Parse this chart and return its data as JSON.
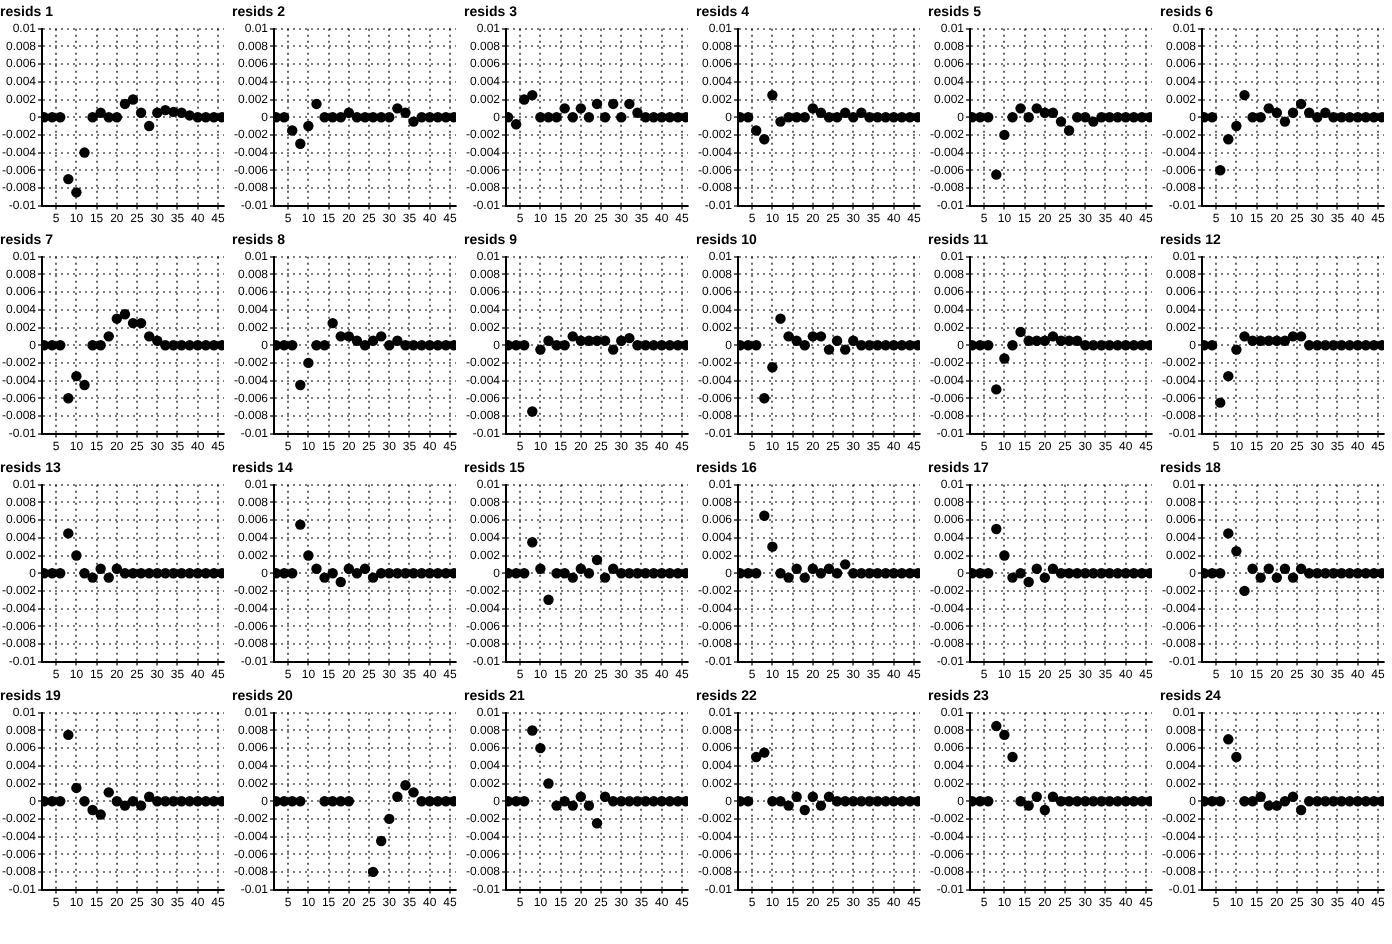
{
  "chart_data": [
    {
      "type": "scatter",
      "title": "resids 1",
      "x": [
        2,
        4,
        6,
        8,
        10,
        12,
        14,
        16,
        18,
        20,
        22,
        24,
        26,
        28,
        30,
        32,
        34,
        36,
        38,
        40,
        42,
        44,
        46
      ],
      "series": [
        {
          "color": "#000000",
          "values": [
            0,
            0,
            0,
            -0.007,
            -0.0085,
            -0.004,
            0,
            0.0005,
            0,
            0,
            0.0015,
            0.002,
            0.0005,
            -0.001,
            0.0005,
            0.0008,
            0.0006,
            0.0005,
            0.0002,
            0,
            0,
            0,
            0
          ]
        }
      ],
      "xlim": [
        1.5,
        46.5
      ],
      "ylim": [
        -0.01,
        0.01
      ],
      "xticks": [
        5,
        10,
        15,
        20,
        25,
        30,
        35,
        40,
        45
      ],
      "yticks": [
        -0.01,
        -0.008,
        -0.006,
        -0.004,
        -0.002,
        0,
        0.002,
        0.004,
        0.006,
        0.008,
        0.01
      ],
      "grid": true,
      "marker": "circle"
    },
    {
      "type": "scatter",
      "title": "resids 2",
      "x": [
        2,
        4,
        6,
        8,
        10,
        12,
        14,
        16,
        18,
        20,
        22,
        24,
        26,
        28,
        30,
        32,
        34,
        36,
        38,
        40,
        42,
        44,
        46
      ],
      "series": [
        {
          "color": "#000000",
          "values": [
            0,
            0,
            -0.0015,
            -0.003,
            -0.001,
            0.0015,
            0,
            0,
            0,
            0.0005,
            0,
            0,
            0,
            0,
            0,
            0.001,
            0.0005,
            -0.0005,
            0,
            0,
            0,
            0,
            0
          ]
        }
      ],
      "xlim": [
        1.5,
        46.5
      ],
      "ylim": [
        -0.01,
        0.01
      ],
      "xticks": [
        5,
        10,
        15,
        20,
        25,
        30,
        35,
        40,
        45
      ],
      "yticks": [
        -0.01,
        -0.008,
        -0.006,
        -0.004,
        -0.002,
        0,
        0.002,
        0.004,
        0.006,
        0.008,
        0.01
      ],
      "grid": true,
      "marker": "circle"
    },
    {
      "type": "scatter",
      "title": "resids 3",
      "x": [
        2,
        4,
        6,
        8,
        10,
        12,
        14,
        16,
        18,
        20,
        22,
        24,
        26,
        28,
        30,
        32,
        34,
        36,
        38,
        40,
        42,
        44,
        46
      ],
      "series": [
        {
          "color": "#000000",
          "values": [
            0,
            -0.0008,
            0.002,
            0.0025,
            0,
            0,
            0,
            0.001,
            0,
            0.001,
            0,
            0.0015,
            0,
            0.0015,
            0,
            0.0015,
            0.0005,
            0,
            0,
            0,
            0,
            0,
            0
          ]
        }
      ],
      "xlim": [
        1.5,
        46.5
      ],
      "ylim": [
        -0.01,
        0.01
      ],
      "xticks": [
        5,
        10,
        15,
        20,
        25,
        30,
        35,
        40,
        45
      ],
      "yticks": [
        -0.01,
        -0.008,
        -0.006,
        -0.004,
        -0.002,
        0,
        0.002,
        0.004,
        0.006,
        0.008,
        0.01
      ],
      "grid": true,
      "marker": "circle"
    },
    {
      "type": "scatter",
      "title": "resids 4",
      "x": [
        2,
        4,
        6,
        8,
        10,
        12,
        14,
        16,
        18,
        20,
        22,
        24,
        26,
        28,
        30,
        32,
        34,
        36,
        38,
        40,
        42,
        44,
        46
      ],
      "series": [
        {
          "color": "#000000",
          "values": [
            0,
            0,
            -0.0015,
            -0.0025,
            0.0025,
            -0.0005,
            0,
            0,
            0,
            0.001,
            0.0005,
            0,
            0,
            0.0005,
            0,
            0.0005,
            0,
            0,
            0,
            0,
            0,
            0,
            0
          ]
        }
      ],
      "xlim": [
        1.5,
        46.5
      ],
      "ylim": [
        -0.01,
        0.01
      ],
      "xticks": [
        5,
        10,
        15,
        20,
        25,
        30,
        35,
        40,
        45
      ],
      "yticks": [
        -0.01,
        -0.008,
        -0.006,
        -0.004,
        -0.002,
        0,
        0.002,
        0.004,
        0.006,
        0.008,
        0.01
      ],
      "grid": true,
      "marker": "circle"
    },
    {
      "type": "scatter",
      "title": "resids 5",
      "x": [
        2,
        4,
        6,
        8,
        10,
        12,
        14,
        16,
        18,
        20,
        22,
        24,
        26,
        28,
        30,
        32,
        34,
        36,
        38,
        40,
        42,
        44,
        46
      ],
      "series": [
        {
          "color": "#000000",
          "values": [
            0,
            0,
            0,
            -0.0065,
            -0.002,
            0,
            0.001,
            0,
            0.001,
            0.0005,
            0.0005,
            -0.0005,
            -0.0015,
            0,
            0,
            -0.0005,
            0,
            0,
            0,
            0,
            0,
            0,
            0
          ]
        }
      ],
      "xlim": [
        1.5,
        46.5
      ],
      "ylim": [
        -0.01,
        0.01
      ],
      "xticks": [
        5,
        10,
        15,
        20,
        25,
        30,
        35,
        40,
        45
      ],
      "yticks": [
        -0.01,
        -0.008,
        -0.006,
        -0.004,
        -0.002,
        0,
        0.002,
        0.004,
        0.006,
        0.008,
        0.01
      ],
      "grid": true,
      "marker": "circle"
    },
    {
      "type": "scatter",
      "title": "resids 6",
      "x": [
        2,
        4,
        6,
        8,
        10,
        12,
        14,
        16,
        18,
        20,
        22,
        24,
        26,
        28,
        30,
        32,
        34,
        36,
        38,
        40,
        42,
        44,
        46
      ],
      "series": [
        {
          "color": "#000000",
          "values": [
            0,
            0,
            -0.006,
            -0.0025,
            -0.001,
            0.0025,
            0,
            0,
            0.001,
            0.0005,
            -0.0005,
            0.0005,
            0.0015,
            0.0005,
            0,
            0.0005,
            0,
            0,
            0,
            0,
            0,
            0,
            0
          ]
        }
      ],
      "xlim": [
        1.5,
        46.5
      ],
      "ylim": [
        -0.01,
        0.01
      ],
      "xticks": [
        5,
        10,
        15,
        20,
        25,
        30,
        35,
        40,
        45
      ],
      "yticks": [
        -0.01,
        -0.008,
        -0.006,
        -0.004,
        -0.002,
        0,
        0.002,
        0.004,
        0.006,
        0.008,
        0.01
      ],
      "grid": true,
      "marker": "circle"
    },
    {
      "type": "scatter",
      "title": "resids 7",
      "x": [
        2,
        4,
        6,
        8,
        10,
        12,
        14,
        16,
        18,
        20,
        22,
        24,
        26,
        28,
        30,
        32,
        34,
        36,
        38,
        40,
        42,
        44,
        46
      ],
      "series": [
        {
          "color": "#000000",
          "values": [
            0,
            0,
            0,
            -0.006,
            -0.0035,
            -0.0045,
            0,
            0,
            0.001,
            0.003,
            0.0035,
            0.0025,
            0.0025,
            0.001,
            0.0005,
            0,
            0,
            0,
            0,
            0,
            0,
            0,
            0
          ]
        }
      ],
      "xlim": [
        1.5,
        46.5
      ],
      "ylim": [
        -0.01,
        0.01
      ],
      "xticks": [
        5,
        10,
        15,
        20,
        25,
        30,
        35,
        40,
        45
      ],
      "yticks": [
        -0.01,
        -0.008,
        -0.006,
        -0.004,
        -0.002,
        0,
        0.002,
        0.004,
        0.006,
        0.008,
        0.01
      ],
      "grid": true,
      "marker": "circle"
    },
    {
      "type": "scatter",
      "title": "resids 8",
      "x": [
        2,
        4,
        6,
        8,
        10,
        12,
        14,
        16,
        18,
        20,
        22,
        24,
        26,
        28,
        30,
        32,
        34,
        36,
        38,
        40,
        42,
        44,
        46
      ],
      "series": [
        {
          "color": "#000000",
          "values": [
            0,
            0,
            0,
            -0.0045,
            -0.002,
            0,
            0,
            0.0025,
            0.001,
            0.001,
            0.0005,
            0,
            0.0005,
            0.001,
            0,
            0.0005,
            0,
            0,
            0,
            0,
            0,
            0,
            0
          ]
        }
      ],
      "xlim": [
        1.5,
        46.5
      ],
      "ylim": [
        -0.01,
        0.01
      ],
      "xticks": [
        5,
        10,
        15,
        20,
        25,
        30,
        35,
        40,
        45
      ],
      "yticks": [
        -0.01,
        -0.008,
        -0.006,
        -0.004,
        -0.002,
        0,
        0.002,
        0.004,
        0.006,
        0.008,
        0.01
      ],
      "grid": true,
      "marker": "circle"
    },
    {
      "type": "scatter",
      "title": "resids 9",
      "x": [
        2,
        4,
        6,
        8,
        10,
        12,
        14,
        16,
        18,
        20,
        22,
        24,
        26,
        28,
        30,
        32,
        34,
        36,
        38,
        40,
        42,
        44,
        46
      ],
      "series": [
        {
          "color": "#000000",
          "values": [
            0,
            0,
            0,
            -0.0075,
            -0.0005,
            0.0005,
            0,
            0,
            0.001,
            0.0005,
            0.0005,
            0.0005,
            0.0005,
            -0.0005,
            0.0005,
            0.0008,
            0,
            0,
            0,
            0,
            0,
            0,
            0
          ]
        }
      ],
      "xlim": [
        1.5,
        46.5
      ],
      "ylim": [
        -0.01,
        0.01
      ],
      "xticks": [
        5,
        10,
        15,
        20,
        25,
        30,
        35,
        40,
        45
      ],
      "yticks": [
        -0.01,
        -0.008,
        -0.006,
        -0.004,
        -0.002,
        0,
        0.002,
        0.004,
        0.006,
        0.008,
        0.01
      ],
      "grid": true,
      "marker": "circle"
    },
    {
      "type": "scatter",
      "title": "resids 10",
      "x": [
        2,
        4,
        6,
        8,
        10,
        12,
        14,
        16,
        18,
        20,
        22,
        24,
        26,
        28,
        30,
        32,
        34,
        36,
        38,
        40,
        42,
        44,
        46
      ],
      "series": [
        {
          "color": "#000000",
          "values": [
            0,
            0,
            0,
            -0.006,
            -0.0025,
            0.003,
            0.001,
            0.0005,
            0,
            0.001,
            0.001,
            -0.0005,
            0.0005,
            -0.0005,
            0.0005,
            0,
            0,
            0,
            0,
            0,
            0,
            0,
            0
          ]
        }
      ],
      "xlim": [
        1.5,
        46.5
      ],
      "ylim": [
        -0.01,
        0.01
      ],
      "xticks": [
        5,
        10,
        15,
        20,
        25,
        30,
        35,
        40,
        45
      ],
      "yticks": [
        -0.01,
        -0.008,
        -0.006,
        -0.004,
        -0.002,
        0,
        0.002,
        0.004,
        0.006,
        0.008,
        0.01
      ],
      "grid": true,
      "marker": "circle"
    },
    {
      "type": "scatter",
      "title": "resids 11",
      "x": [
        2,
        4,
        6,
        8,
        10,
        12,
        14,
        16,
        18,
        20,
        22,
        24,
        26,
        28,
        30,
        32,
        34,
        36,
        38,
        40,
        42,
        44,
        46
      ],
      "series": [
        {
          "color": "#000000",
          "values": [
            0,
            0,
            0,
            -0.005,
            -0.0015,
            0,
            0.0015,
            0.0005,
            0.0005,
            0.0005,
            0.001,
            0.0005,
            0.0005,
            0.0005,
            0,
            0,
            0,
            0,
            0,
            0,
            0,
            0,
            0
          ]
        }
      ],
      "xlim": [
        1.5,
        46.5
      ],
      "ylim": [
        -0.01,
        0.01
      ],
      "xticks": [
        5,
        10,
        15,
        20,
        25,
        30,
        35,
        40,
        45
      ],
      "yticks": [
        -0.01,
        -0.008,
        -0.006,
        -0.004,
        -0.002,
        0,
        0.002,
        0.004,
        0.006,
        0.008,
        0.01
      ],
      "grid": true,
      "marker": "circle"
    },
    {
      "type": "scatter",
      "title": "resids 12",
      "x": [
        2,
        4,
        6,
        8,
        10,
        12,
        14,
        16,
        18,
        20,
        22,
        24,
        26,
        28,
        30,
        32,
        34,
        36,
        38,
        40,
        42,
        44,
        46
      ],
      "series": [
        {
          "color": "#000000",
          "values": [
            0,
            0,
            -0.0065,
            -0.0035,
            -0.0005,
            0.001,
            0.0005,
            0.0005,
            0.0005,
            0.0005,
            0.0005,
            0.001,
            0.001,
            0,
            0,
            0,
            0,
            0,
            0,
            0,
            0,
            0,
            0
          ]
        }
      ],
      "xlim": [
        1.5,
        46.5
      ],
      "ylim": [
        -0.01,
        0.01
      ],
      "xticks": [
        5,
        10,
        15,
        20,
        25,
        30,
        35,
        40,
        45
      ],
      "yticks": [
        -0.01,
        -0.008,
        -0.006,
        -0.004,
        -0.002,
        0,
        0.002,
        0.004,
        0.006,
        0.008,
        0.01
      ],
      "grid": true,
      "marker": "circle"
    },
    {
      "type": "scatter",
      "title": "resids 13",
      "x": [
        2,
        4,
        6,
        8,
        10,
        12,
        14,
        16,
        18,
        20,
        22,
        24,
        26,
        28,
        30,
        32,
        34,
        36,
        38,
        40,
        42,
        44,
        46
      ],
      "series": [
        {
          "color": "#000000",
          "values": [
            0,
            0,
            0,
            0.0045,
            0.002,
            0,
            -0.0005,
            0.0005,
            -0.0005,
            0.0005,
            0,
            0,
            0,
            0,
            0,
            0,
            0,
            0,
            0,
            0,
            0,
            0,
            0
          ]
        }
      ],
      "xlim": [
        1.5,
        46.5
      ],
      "ylim": [
        -0.01,
        0.01
      ],
      "xticks": [
        5,
        10,
        15,
        20,
        25,
        30,
        35,
        40,
        45
      ],
      "yticks": [
        -0.01,
        -0.008,
        -0.006,
        -0.004,
        -0.002,
        0,
        0.002,
        0.004,
        0.006,
        0.008,
        0.01
      ],
      "grid": true,
      "marker": "circle"
    },
    {
      "type": "scatter",
      "title": "resids 14",
      "x": [
        2,
        4,
        6,
        8,
        10,
        12,
        14,
        16,
        18,
        20,
        22,
        24,
        26,
        28,
        30,
        32,
        34,
        36,
        38,
        40,
        42,
        44,
        46
      ],
      "series": [
        {
          "color": "#000000",
          "values": [
            0,
            0,
            0,
            0.0055,
            0.002,
            0.0005,
            -0.0005,
            0,
            -0.001,
            0.0005,
            0,
            0.0005,
            -0.0005,
            0,
            0,
            0,
            0,
            0,
            0,
            0,
            0,
            0,
            0
          ]
        }
      ],
      "xlim": [
        1.5,
        46.5
      ],
      "ylim": [
        -0.01,
        0.01
      ],
      "xticks": [
        5,
        10,
        15,
        20,
        25,
        30,
        35,
        40,
        45
      ],
      "yticks": [
        -0.01,
        -0.008,
        -0.006,
        -0.004,
        -0.002,
        0,
        0.002,
        0.004,
        0.006,
        0.008,
        0.01
      ],
      "grid": true,
      "marker": "circle"
    },
    {
      "type": "scatter",
      "title": "resids 15",
      "x": [
        2,
        4,
        6,
        8,
        10,
        12,
        14,
        16,
        18,
        20,
        22,
        24,
        26,
        28,
        30,
        32,
        34,
        36,
        38,
        40,
        42,
        44,
        46
      ],
      "series": [
        {
          "color": "#000000",
          "values": [
            0,
            0,
            0,
            0.0035,
            0.0005,
            -0.003,
            0,
            0,
            -0.0005,
            0.0005,
            0,
            0.0015,
            -0.0005,
            0.0005,
            0,
            0,
            0,
            0,
            0,
            0,
            0,
            0,
            0
          ]
        }
      ],
      "xlim": [
        1.5,
        46.5
      ],
      "ylim": [
        -0.01,
        0.01
      ],
      "xticks": [
        5,
        10,
        15,
        20,
        25,
        30,
        35,
        40,
        45
      ],
      "yticks": [
        -0.01,
        -0.008,
        -0.006,
        -0.004,
        -0.002,
        0,
        0.002,
        0.004,
        0.006,
        0.008,
        0.01
      ],
      "grid": true,
      "marker": "circle"
    },
    {
      "type": "scatter",
      "title": "resids 16",
      "x": [
        2,
        4,
        6,
        8,
        10,
        12,
        14,
        16,
        18,
        20,
        22,
        24,
        26,
        28,
        30,
        32,
        34,
        36,
        38,
        40,
        42,
        44,
        46
      ],
      "series": [
        {
          "color": "#000000",
          "values": [
            0,
            0,
            0,
            0.0065,
            0.003,
            0,
            -0.0005,
            0.0005,
            -0.0005,
            0.0005,
            0,
            0.0005,
            0,
            0.001,
            0,
            0,
            0,
            0,
            0,
            0,
            0,
            0,
            0
          ]
        }
      ],
      "xlim": [
        1.5,
        46.5
      ],
      "ylim": [
        -0.01,
        0.01
      ],
      "xticks": [
        5,
        10,
        15,
        20,
        25,
        30,
        35,
        40,
        45
      ],
      "yticks": [
        -0.01,
        -0.008,
        -0.006,
        -0.004,
        -0.002,
        0,
        0.002,
        0.004,
        0.006,
        0.008,
        0.01
      ],
      "grid": true,
      "marker": "circle"
    },
    {
      "type": "scatter",
      "title": "resids 17",
      "x": [
        2,
        4,
        6,
        8,
        10,
        12,
        14,
        16,
        18,
        20,
        22,
        24,
        26,
        28,
        30,
        32,
        34,
        36,
        38,
        40,
        42,
        44,
        46
      ],
      "series": [
        {
          "color": "#000000",
          "values": [
            0,
            0,
            0,
            0.005,
            0.002,
            -0.0005,
            0,
            -0.001,
            0.0005,
            -0.0005,
            0.0005,
            0,
            0,
            0,
            0,
            0,
            0,
            0,
            0,
            0,
            0,
            0,
            0
          ]
        }
      ],
      "xlim": [
        1.5,
        46.5
      ],
      "ylim": [
        -0.01,
        0.01
      ],
      "xticks": [
        5,
        10,
        15,
        20,
        25,
        30,
        35,
        40,
        45
      ],
      "yticks": [
        -0.01,
        -0.008,
        -0.006,
        -0.004,
        -0.002,
        0,
        0.002,
        0.004,
        0.006,
        0.008,
        0.01
      ],
      "grid": true,
      "marker": "circle"
    },
    {
      "type": "scatter",
      "title": "resids 18",
      "x": [
        2,
        4,
        6,
        8,
        10,
        12,
        14,
        16,
        18,
        20,
        22,
        24,
        26,
        28,
        30,
        32,
        34,
        36,
        38,
        40,
        42,
        44,
        46
      ],
      "series": [
        {
          "color": "#000000",
          "values": [
            0,
            0,
            0,
            0.0045,
            0.0025,
            -0.002,
            0.0005,
            -0.0005,
            0.0005,
            -0.0005,
            0.0005,
            -0.0005,
            0.0005,
            0,
            0,
            0,
            0,
            0,
            0,
            0,
            0,
            0,
            0
          ]
        }
      ],
      "xlim": [
        1.5,
        46.5
      ],
      "ylim": [
        -0.01,
        0.01
      ],
      "xticks": [
        5,
        10,
        15,
        20,
        25,
        30,
        35,
        40,
        45
      ],
      "yticks": [
        -0.01,
        -0.008,
        -0.006,
        -0.004,
        -0.002,
        0,
        0.002,
        0.004,
        0.006,
        0.008,
        0.01
      ],
      "grid": true,
      "marker": "circle"
    },
    {
      "type": "scatter",
      "title": "resids 19",
      "x": [
        2,
        4,
        6,
        8,
        10,
        12,
        14,
        16,
        18,
        20,
        22,
        24,
        26,
        28,
        30,
        32,
        34,
        36,
        38,
        40,
        42,
        44,
        46
      ],
      "series": [
        {
          "color": "#000000",
          "values": [
            0,
            0,
            0,
            0.0075,
            0.0015,
            0,
            -0.001,
            -0.0015,
            0.001,
            0,
            -0.0005,
            0,
            -0.0005,
            0.0005,
            0,
            0,
            0,
            0,
            0,
            0,
            0,
            0,
            0
          ]
        }
      ],
      "xlim": [
        1.5,
        46.5
      ],
      "ylim": [
        -0.01,
        0.01
      ],
      "xticks": [
        5,
        10,
        15,
        20,
        25,
        30,
        35,
        40,
        45
      ],
      "yticks": [
        -0.01,
        -0.008,
        -0.006,
        -0.004,
        -0.002,
        0,
        0.002,
        0.004,
        0.006,
        0.008,
        0.01
      ],
      "grid": true,
      "marker": "circle"
    },
    {
      "type": "scatter",
      "title": "resids 20",
      "x": [
        2,
        4,
        6,
        8,
        10,
        12,
        14,
        16,
        18,
        20,
        22,
        24,
        26,
        28,
        30,
        32,
        34,
        36,
        38,
        40,
        42,
        44,
        46
      ],
      "series": [
        {
          "color": "#000000",
          "values": [
            0,
            0,
            0,
            0,
            null,
            null,
            0,
            0,
            0,
            0,
            null,
            null,
            -0.008,
            -0.0045,
            -0.002,
            0.0005,
            0.0018,
            0.001,
            0,
            0,
            0,
            0,
            0
          ]
        }
      ],
      "xlim": [
        1.5,
        46.5
      ],
      "ylim": [
        -0.01,
        0.01
      ],
      "xticks": [
        5,
        10,
        15,
        20,
        25,
        30,
        35,
        40,
        45
      ],
      "yticks": [
        -0.01,
        -0.008,
        -0.006,
        -0.004,
        -0.002,
        0,
        0.002,
        0.004,
        0.006,
        0.008,
        0.01
      ],
      "grid": true,
      "marker": "circle"
    },
    {
      "type": "scatter",
      "title": "resids 21",
      "x": [
        2,
        4,
        6,
        8,
        10,
        12,
        14,
        16,
        18,
        20,
        22,
        24,
        26,
        28,
        30,
        32,
        34,
        36,
        38,
        40,
        42,
        44,
        46
      ],
      "series": [
        {
          "color": "#000000",
          "values": [
            0,
            0,
            0,
            0.008,
            0.006,
            0.002,
            -0.0005,
            0,
            -0.0005,
            0.0005,
            -0.0005,
            -0.0025,
            0.0005,
            0,
            0,
            0,
            0,
            0,
            0,
            0,
            0,
            0,
            0
          ]
        }
      ],
      "xlim": [
        1.5,
        46.5
      ],
      "ylim": [
        -0.01,
        0.01
      ],
      "xticks": [
        5,
        10,
        15,
        20,
        25,
        30,
        35,
        40,
        45
      ],
      "yticks": [
        -0.01,
        -0.008,
        -0.006,
        -0.004,
        -0.002,
        0,
        0.002,
        0.004,
        0.006,
        0.008,
        0.01
      ],
      "grid": true,
      "marker": "circle"
    },
    {
      "type": "scatter",
      "title": "resids 22",
      "x": [
        2,
        4,
        6,
        8,
        10,
        12,
        14,
        16,
        18,
        20,
        22,
        24,
        26,
        28,
        30,
        32,
        34,
        36,
        38,
        40,
        42,
        44,
        46
      ],
      "series": [
        {
          "color": "#000000",
          "values": [
            0,
            0,
            0.005,
            0.0055,
            0,
            0,
            -0.0005,
            0.0005,
            -0.001,
            0.0005,
            -0.0005,
            0.0005,
            0,
            0,
            0,
            0,
            0,
            0,
            0,
            0,
            0,
            0,
            0
          ]
        }
      ],
      "xlim": [
        1.5,
        46.5
      ],
      "ylim": [
        -0.01,
        0.01
      ],
      "xticks": [
        5,
        10,
        15,
        20,
        25,
        30,
        35,
        40,
        45
      ],
      "yticks": [
        -0.01,
        -0.008,
        -0.006,
        -0.004,
        -0.002,
        0,
        0.002,
        0.004,
        0.006,
        0.008,
        0.01
      ],
      "grid": true,
      "marker": "circle"
    },
    {
      "type": "scatter",
      "title": "resids 23",
      "x": [
        2,
        4,
        6,
        8,
        10,
        12,
        14,
        16,
        18,
        20,
        22,
        24,
        26,
        28,
        30,
        32,
        34,
        36,
        38,
        40,
        42,
        44,
        46
      ],
      "series": [
        {
          "color": "#000000",
          "values": [
            0,
            0,
            0,
            0.0085,
            0.0075,
            0.005,
            0,
            -0.0005,
            0.0005,
            -0.001,
            0.0005,
            0,
            0,
            0,
            0,
            0,
            0,
            0,
            0,
            0,
            0,
            0,
            0
          ]
        }
      ],
      "xlim": [
        1.5,
        46.5
      ],
      "ylim": [
        -0.01,
        0.01
      ],
      "xticks": [
        5,
        10,
        15,
        20,
        25,
        30,
        35,
        40,
        45
      ],
      "yticks": [
        -0.01,
        -0.008,
        -0.006,
        -0.004,
        -0.002,
        0,
        0.002,
        0.004,
        0.006,
        0.008,
        0.01
      ],
      "grid": true,
      "marker": "circle"
    },
    {
      "type": "scatter",
      "title": "resids 24",
      "x": [
        2,
        4,
        6,
        8,
        10,
        12,
        14,
        16,
        18,
        20,
        22,
        24,
        26,
        28,
        30,
        32,
        34,
        36,
        38,
        40,
        42,
        44,
        46
      ],
      "series": [
        {
          "color": "#000000",
          "values": [
            0,
            0,
            0,
            0.007,
            0.005,
            0,
            0,
            0.0005,
            -0.0005,
            -0.0005,
            0,
            0.0005,
            -0.001,
            0,
            0,
            0,
            0,
            0,
            0,
            0,
            0,
            0,
            0
          ]
        }
      ],
      "xlim": [
        1.5,
        46.5
      ],
      "ylim": [
        -0.01,
        0.01
      ],
      "xticks": [
        5,
        10,
        15,
        20,
        25,
        30,
        35,
        40,
        45
      ],
      "yticks": [
        -0.01,
        -0.008,
        -0.006,
        -0.004,
        -0.002,
        0,
        0.002,
        0.004,
        0.006,
        0.008,
        0.01
      ],
      "grid": true,
      "marker": "circle"
    }
  ]
}
